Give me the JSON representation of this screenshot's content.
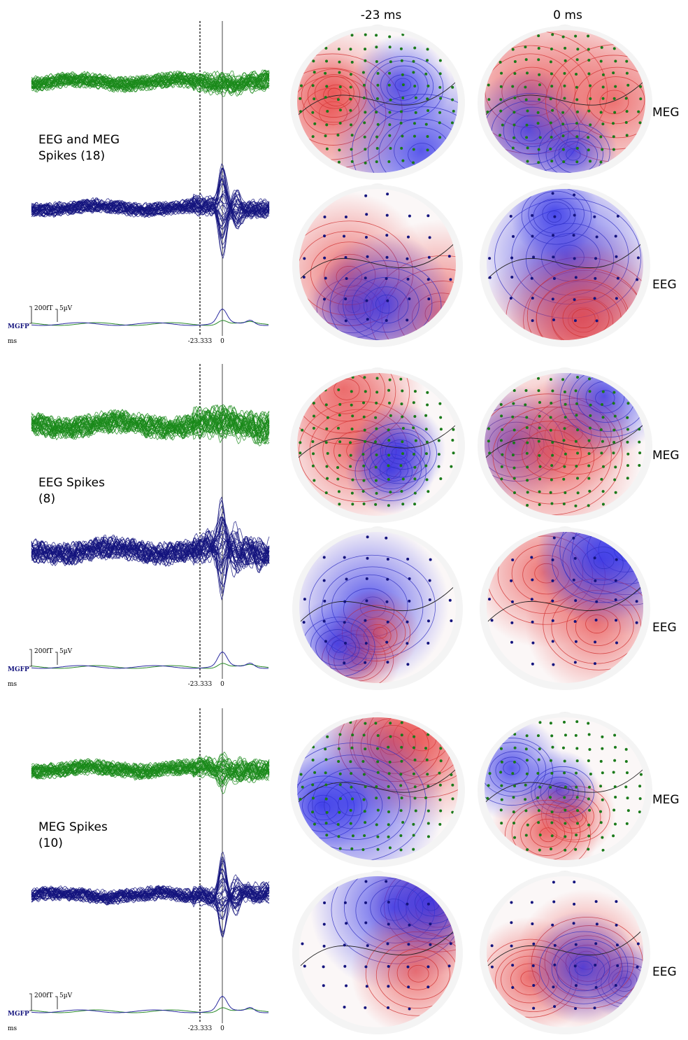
{
  "columns": [
    "-23 ms",
    "0 ms"
  ],
  "panels": [
    {
      "label": [
        "EEG and MEG",
        "Spikes (18)"
      ],
      "scale": [
        "200fT",
        "5µV"
      ],
      "mgfp": "MGFP",
      "unit": "ms",
      "times": [
        "-23.333",
        "0"
      ],
      "rows": [
        "MEG",
        "EEG"
      ]
    },
    {
      "label": [
        "EEG Spikes",
        "(8)"
      ],
      "scale": [
        "200fT",
        "5µV"
      ],
      "mgfp": "MGFP",
      "unit": "ms",
      "times": [
        "-23.333",
        "0"
      ],
      "rows": [
        "MEG",
        "EEG"
      ]
    },
    {
      "label": [
        "MEG Spikes",
        "(10)"
      ],
      "scale": [
        "200fT",
        "5µV"
      ],
      "mgfp": "MGFP",
      "unit": "ms",
      "times": [
        "-23.333",
        "0"
      ],
      "rows": [
        "MEG",
        "EEG"
      ]
    }
  ]
}
